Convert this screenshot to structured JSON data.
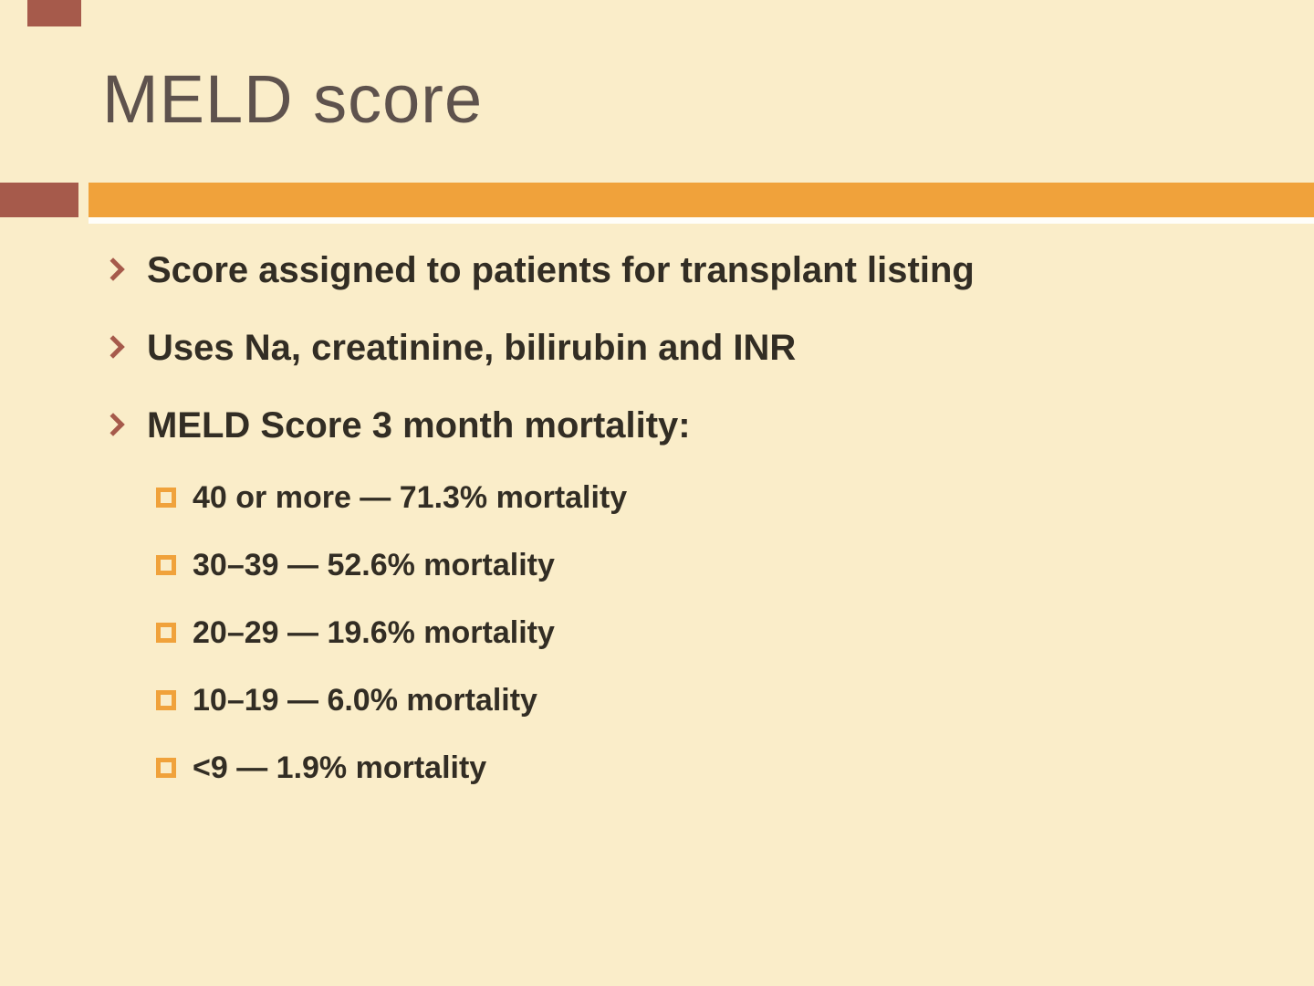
{
  "slide": {
    "title": "MELD score",
    "bullets": [
      "Score assigned to patients for transplant listing",
      "Uses Na, creatinine, bilirubin and INR",
      "MELD Score 3 month mortality:"
    ],
    "sub_bullets": [
      "40 or more — 71.3% mortality",
      "30–39 — 52.6% mortality",
      "20–29 — 19.6% mortality",
      "10–19 — 6.0% mortality",
      "<9 — 1.9% mortality"
    ],
    "colors": {
      "background": "#FAEDC9",
      "accent_orange": "#F0A23B",
      "accent_brick": "#A65A4B",
      "title_text": "#5E524D",
      "body_text": "#322D24"
    }
  }
}
